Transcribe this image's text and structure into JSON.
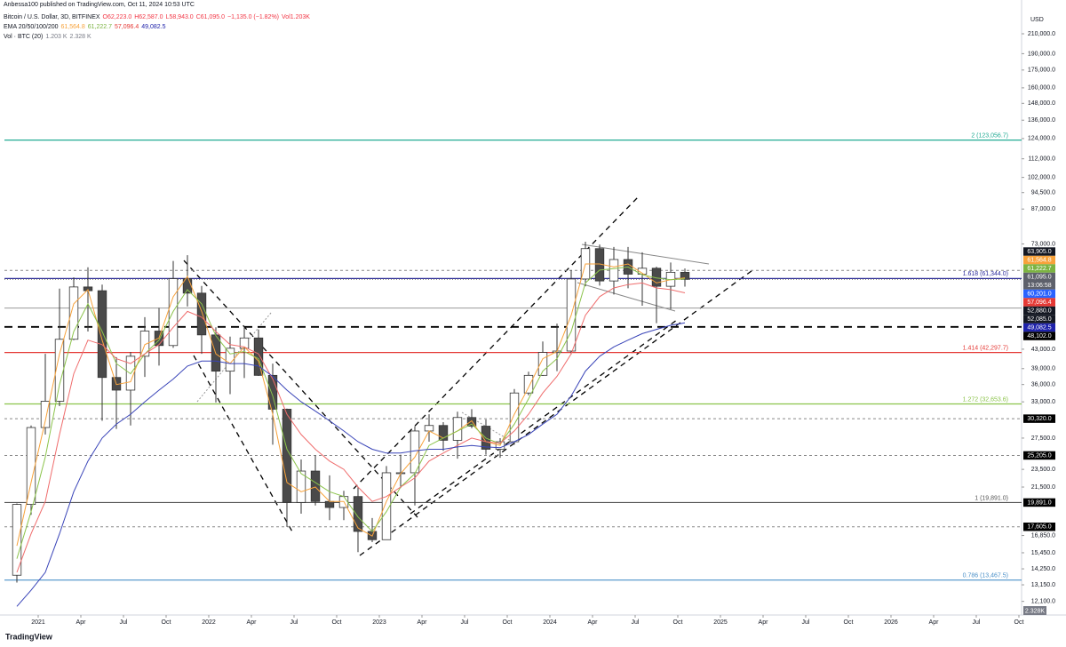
{
  "header": {
    "published": "Anbessa100 published on TradingView.com, Oct 11, 2024 10:53 UTC",
    "symbol_line": [
      {
        "text": "Bitcoin / U.S. Dollar, 3D, BITFINEX",
        "color": "#131722"
      },
      {
        "text": "O62,223.0",
        "color": "#f23645"
      },
      {
        "text": "H62,587.0",
        "color": "#f23645"
      },
      {
        "text": "L58,943.0",
        "color": "#f23645"
      },
      {
        "text": "C61,095.0",
        "color": "#f23645"
      },
      {
        "text": "−1,135.0 (−1.82%)",
        "color": "#f23645"
      },
      {
        "text": "Vol1.203K",
        "color": "#f23645"
      }
    ],
    "ema_line": [
      {
        "text": "EMA 20/50/100/200",
        "color": "#131722"
      },
      {
        "text": "61,564.8",
        "color": "#f7a23b"
      },
      {
        "text": "61,222.7",
        "color": "#7cb342"
      },
      {
        "text": "57,096.4",
        "color": "#e53935"
      },
      {
        "text": "49,082.5",
        "color": "#1e22aa"
      }
    ],
    "vol_line": [
      {
        "text": "Vol · BTC (20)",
        "color": "#131722"
      },
      {
        "text": "1.203 K",
        "color": "#787b86"
      },
      {
        "text": "2.328 K",
        "color": "#787b86"
      }
    ]
  },
  "footer": {
    "brand": "TradingView",
    "volume_badge": "2.328K"
  },
  "chart_data": {
    "type": "candlestick",
    "y_axis_unit": "USD",
    "log_scale": true,
    "up_color": "#ffffff",
    "down_color": "#4a4a4a",
    "wick_color": "#333333",
    "x": [
      "2020-11",
      "2020-12",
      "2021-01",
      "2021-02",
      "2021-03",
      "2021-04",
      "2021-05",
      "2021-06",
      "2021-07",
      "2021-08",
      "2021-09",
      "2021-10",
      "2021-11",
      "2021-12",
      "2022-01",
      "2022-02",
      "2022-03",
      "2022-04",
      "2022-05",
      "2022-06",
      "2022-07",
      "2022-08",
      "2022-09",
      "2022-10",
      "2022-11",
      "2022-12",
      "2023-01",
      "2023-02",
      "2023-03",
      "2023-04",
      "2023-05",
      "2023-06",
      "2023-07",
      "2023-08",
      "2023-09",
      "2023-10",
      "2023-11",
      "2023-12",
      "2024-01",
      "2024-02",
      "2024-03",
      "2024-04",
      "2024-05",
      "2024-06",
      "2024-07",
      "2024-08",
      "2024-09",
      "2024-10"
    ],
    "open": [
      13800,
      19700,
      29000,
      33100,
      45200,
      58800,
      57700,
      37300,
      35000,
      41500,
      47100,
      43800,
      61300,
      57000,
      46200,
      38500,
      43200,
      45500,
      37700,
      31800,
      19900,
      23300,
      20000,
      19400,
      20500,
      17200,
      16500,
      23100,
      23100,
      28500,
      29300,
      27200,
      30500,
      29200,
      26000,
      27000,
      34500,
      37700,
      42300,
      42600,
      61200,
      71300,
      60600,
      67500,
      62700,
      64600,
      59000,
      63300
    ],
    "high": [
      19800,
      29300,
      42000,
      58300,
      61700,
      64900,
      59500,
      41300,
      42400,
      50500,
      52900,
      67000,
      69000,
      59100,
      48000,
      45800,
      48200,
      47500,
      40000,
      31900,
      24700,
      25200,
      22800,
      21100,
      21500,
      18400,
      23900,
      25300,
      29200,
      31000,
      29800,
      31400,
      31800,
      30200,
      27500,
      35200,
      38400,
      44700,
      48900,
      64000,
      73800,
      72800,
      71900,
      71900,
      70000,
      65100,
      66500,
      64500
    ],
    "low": [
      13300,
      18700,
      28000,
      32300,
      45000,
      47000,
      30000,
      28800,
      29300,
      37400,
      39600,
      43300,
      53300,
      42000,
      32900,
      34300,
      37200,
      37600,
      26600,
      17600,
      18800,
      19600,
      18200,
      18200,
      15500,
      16300,
      16500,
      21400,
      19600,
      27000,
      25800,
      24800,
      28900,
      25300,
      24900,
      26600,
      34100,
      37600,
      38500,
      41900,
      59000,
      59200,
      56600,
      58400,
      53500,
      49000,
      52600,
      58900
    ],
    "close": [
      19700,
      29000,
      33100,
      45200,
      58800,
      57700,
      37300,
      35000,
      41500,
      47100,
      43800,
      61300,
      57000,
      46200,
      38500,
      43200,
      45500,
      37700,
      31800,
      19900,
      23300,
      20000,
      19400,
      20500,
      17200,
      16500,
      23100,
      23100,
      28500,
      29300,
      27200,
      30500,
      29200,
      26000,
      27000,
      34500,
      37700,
      42300,
      42600,
      61200,
      71300,
      60600,
      67500,
      62700,
      64600,
      59000,
      63300,
      61095
    ],
    "series": [
      {
        "color": "#f7a23b",
        "values": [
          16000,
          22000,
          30000,
          42000,
          54000,
          58000,
          45000,
          36000,
          36500,
          44000,
          45500,
          56000,
          62000,
          52000,
          42000,
          40000,
          43500,
          40500,
          31000,
          22000,
          21000,
          21500,
          20000,
          20000,
          17500,
          16800,
          20000,
          23000,
          25000,
          28500,
          27500,
          28500,
          30000,
          27000,
          26500,
          31000,
          35500,
          41000,
          42500,
          51000,
          66000,
          66000,
          65000,
          66000,
          63000,
          60000,
          61000,
          61564.8
        ]
      },
      {
        "color": "#8bc34a",
        "values": [
          15000,
          19000,
          25000,
          36000,
          47000,
          54000,
          47000,
          40000,
          38000,
          42000,
          45000,
          52000,
          58000,
          54000,
          46000,
          42000,
          42500,
          41000,
          34000,
          26000,
          23000,
          22000,
          21000,
          20500,
          18500,
          17200,
          19000,
          21500,
          23000,
          26500,
          27500,
          28500,
          29500,
          27500,
          26700,
          29500,
          33500,
          38500,
          41000,
          47000,
          60000,
          64000,
          64500,
          65000,
          62500,
          61500,
          61000,
          61222.7
        ]
      },
      {
        "color": "#ef6c6c",
        "values": [
          14000,
          17000,
          20000,
          28000,
          38000,
          45000,
          44000,
          41000,
          40000,
          42000,
          44000,
          48000,
          52000,
          50500,
          47000,
          44000,
          43500,
          42000,
          37000,
          31000,
          28000,
          26000,
          24500,
          23500,
          21500,
          20000,
          20500,
          21500,
          22500,
          24500,
          25500,
          26500,
          27500,
          27000,
          26800,
          28500,
          31000,
          34500,
          37500,
          42000,
          51000,
          56000,
          58500,
          59500,
          60000,
          58500,
          58000,
          57096.4
        ]
      },
      {
        "color": "#3944b8",
        "values": [
          11800,
          12800,
          14000,
          17000,
          21000,
          24500,
          27500,
          29500,
          31000,
          33000,
          35000,
          37000,
          39500,
          40500,
          40500,
          40000,
          40000,
          39500,
          37500,
          35000,
          33000,
          31500,
          30000,
          28500,
          27000,
          26000,
          25500,
          25500,
          25800,
          26000,
          26000,
          26300,
          26500,
          26300,
          26200,
          27000,
          28000,
          29500,
          31000,
          34000,
          38500,
          41500,
          43500,
          45000,
          46500,
          47500,
          48500,
          49082.5
        ]
      }
    ],
    "ylim": [
      11400,
      238000
    ],
    "yticks": [
      {
        "value": 210000,
        "label": "210,000.0"
      },
      {
        "value": 190000,
        "label": "190,000.0"
      },
      {
        "value": 175000,
        "label": "175,000.0"
      },
      {
        "value": 160000,
        "label": "160,000.0"
      },
      {
        "value": 148000,
        "label": "148,000.0"
      },
      {
        "value": 136000,
        "label": "136,000.0"
      },
      {
        "value": 124000,
        "label": "124,000.0"
      },
      {
        "value": 112000,
        "label": "112,000.0"
      },
      {
        "value": 102000,
        "label": "102,000.0"
      },
      {
        "value": 94500,
        "label": "94,500.0"
      },
      {
        "value": 87000,
        "label": "87,000.0"
      },
      {
        "value": 73000,
        "label": "73,000.0"
      },
      {
        "value": 43000,
        "label": "43,000.0"
      },
      {
        "value": 39000,
        "label": "39,000.0"
      },
      {
        "value": 36000,
        "label": "36,000.0"
      },
      {
        "value": 33000,
        "label": "33,000.0"
      },
      {
        "value": 27500,
        "label": "27,500.0"
      },
      {
        "value": 23500,
        "label": "23,500.0"
      },
      {
        "value": 21500,
        "label": "21,500.0"
      },
      {
        "value": 16850,
        "label": "16,850.0"
      },
      {
        "value": 15450,
        "label": "15,450.0"
      },
      {
        "value": 14250,
        "label": "14,250.0"
      },
      {
        "value": 13150,
        "label": "13,150.0"
      },
      {
        "value": 12100,
        "label": "12,100.0"
      }
    ],
    "xlim": [
      "2020-11",
      "2026-11"
    ],
    "xticks": [
      {
        "value": "2021-01",
        "label": "2021"
      },
      {
        "value": "2021-04",
        "label": "Apr"
      },
      {
        "value": "2021-07",
        "label": "Jul"
      },
      {
        "value": "2021-10",
        "label": "Oct"
      },
      {
        "value": "2022-01",
        "label": "2022"
      },
      {
        "value": "2022-04",
        "label": "Apr"
      },
      {
        "value": "2022-07",
        "label": "Jul"
      },
      {
        "value": "2022-10",
        "label": "Oct"
      },
      {
        "value": "2023-01",
        "label": "2023"
      },
      {
        "value": "2023-04",
        "label": "Apr"
      },
      {
        "value": "2023-07",
        "label": "Jul"
      },
      {
        "value": "2023-10",
        "label": "Oct"
      },
      {
        "value": "2024-01",
        "label": "2024"
      },
      {
        "value": "2024-04",
        "label": "Apr"
      },
      {
        "value": "2024-07",
        "label": "Jul"
      },
      {
        "value": "2024-10",
        "label": "Oct"
      },
      {
        "value": "2025-01",
        "label": "2025"
      },
      {
        "value": "2025-04",
        "label": "Apr"
      },
      {
        "value": "2025-07",
        "label": "Jul"
      },
      {
        "value": "2025-10",
        "label": "Oct"
      },
      {
        "value": "2026-01",
        "label": "2026"
      },
      {
        "value": "2026-04",
        "label": "Apr"
      },
      {
        "value": "2026-07",
        "label": "Jul"
      },
      {
        "value": "2026-10",
        "label": "Oct"
      }
    ],
    "fib_levels": [
      {
        "value": 123056.7,
        "label": "2 (123,056.7)",
        "color": "#22ab94"
      },
      {
        "value": 61344.0,
        "label": "1.618 (61,344.0)",
        "color": "#2d2d9c"
      },
      {
        "value": 42297.7,
        "label": "1.414 (42,297.7)",
        "color": "#e53935"
      },
      {
        "value": 32653.6,
        "label": "1.272 (32,653.6)",
        "color": "#8bc34a"
      },
      {
        "value": 19891.0,
        "label": "1 (19,891.0)",
        "color": "#555555"
      },
      {
        "value": 13467.5,
        "label": "0.786 (13,467.5)",
        "color": "#4a90c8"
      }
    ],
    "price_badges": [
      {
        "value": 63905,
        "label": "63,905.0",
        "color": "#131722",
        "line": "dashed"
      },
      {
        "value": 61564.8,
        "label": "61,564.8",
        "color": "#f7a23b"
      },
      {
        "value": 61222.7,
        "label": "61,222.7",
        "color": "#7cb342"
      },
      {
        "value": 61095,
        "label": "61,095.0",
        "color": "#5d606b",
        "countdown": "13:06:58",
        "line": "dotted"
      },
      {
        "value": 60201,
        "label": "60,201.0",
        "color": "#2962ff"
      },
      {
        "value": 57096.4,
        "label": "57,096.4",
        "color": "#e53935"
      },
      {
        "value": 52880,
        "label": "52,880.0",
        "color": "#131722",
        "line": "solid"
      },
      {
        "value": 52085,
        "label": "52,085.0",
        "color": "#131722"
      },
      {
        "value": 49082.5,
        "label": "49,082.5",
        "color": "#1e22aa"
      },
      {
        "value": 48102,
        "label": "48,102.0",
        "color": "#000000",
        "line": "thick-dashed"
      },
      {
        "value": 30320,
        "label": "30,320.0",
        "color": "#000000",
        "line": "dashed"
      },
      {
        "value": 25205,
        "label": "25,205.0",
        "color": "#000000",
        "line": "dashed"
      },
      {
        "value": 19891,
        "label": "19,891.0",
        "color": "#000000"
      },
      {
        "value": 17605,
        "label": "17,605.0",
        "color": "#000000",
        "line": "dashed"
      }
    ]
  }
}
